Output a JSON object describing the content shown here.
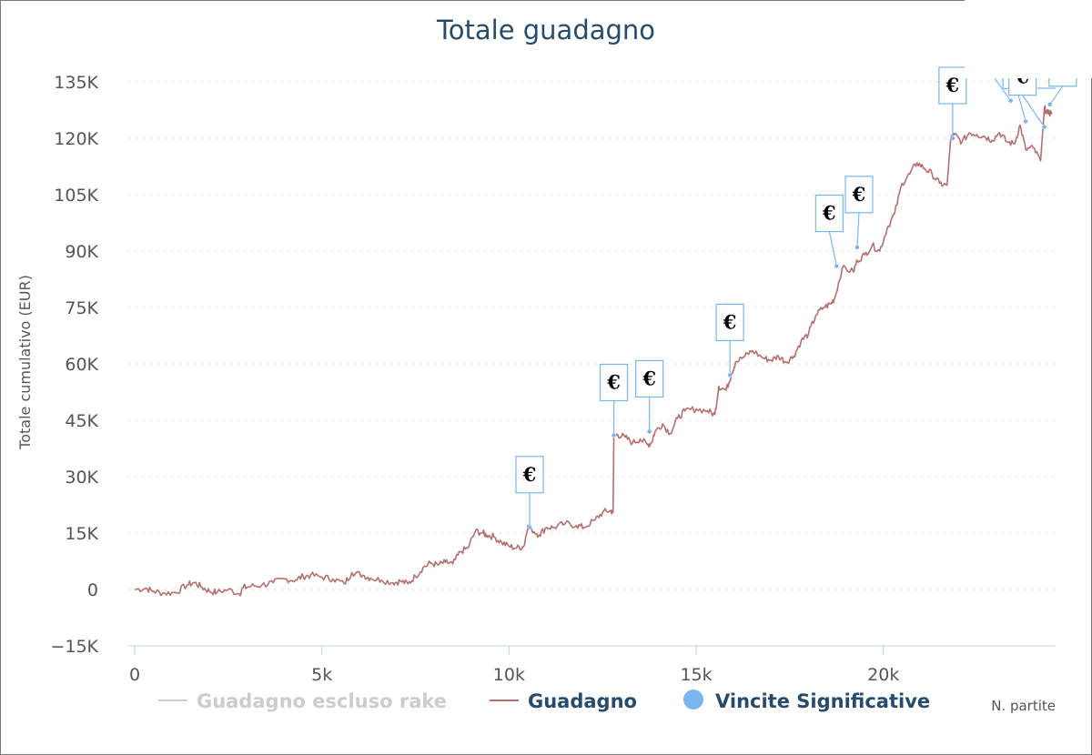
{
  "chart_data": {
    "type": "line",
    "title": "Totale guadagno",
    "xlabel": "N. partite",
    "ylabel": "Totale cumulativo (EUR)",
    "xlim": [
      0,
      24600
    ],
    "ylim": [
      -15000,
      135000
    ],
    "x_ticks": [
      0,
      5000,
      10000,
      15000,
      20000
    ],
    "x_tick_labels": [
      "0",
      "5k",
      "10k",
      "15k",
      "20k"
    ],
    "y_ticks": [
      -15000,
      0,
      15000,
      30000,
      45000,
      60000,
      75000,
      90000,
      105000,
      120000,
      135000
    ],
    "y_tick_labels": [
      "−15K",
      "0",
      "15K",
      "30K",
      "45K",
      "60K",
      "75K",
      "90K",
      "105K",
      "120K",
      "135K"
    ],
    "grid": true,
    "legend_position": "bottom",
    "colors": {
      "guadagno": "#b56f6f",
      "escluso_rake": "#cccccc",
      "vincite": "#7cb5ec",
      "title": "#274b6d"
    },
    "series": [
      {
        "name": "Guadagno escluso rake",
        "hidden": true,
        "x": [],
        "y": []
      },
      {
        "name": "Guadagno",
        "x": [
          0,
          300,
          500,
          800,
          1100,
          1400,
          1600,
          1800,
          2000,
          2200,
          2500,
          2800,
          2900,
          3100,
          3400,
          3700,
          4000,
          4300,
          4500,
          4700,
          5000,
          5300,
          5600,
          5800,
          6100,
          6300,
          6600,
          6900,
          7100,
          7300,
          7500,
          7700,
          7900,
          8100,
          8300,
          8500,
          8700,
          8900,
          9100,
          9300,
          9400,
          9600,
          9800,
          10000,
          10200,
          10400,
          10500,
          10600,
          10800,
          11000,
          11200,
          11500,
          11800,
          12000,
          12300,
          12500,
          12700,
          12780,
          12800,
          12900,
          13100,
          13300,
          13500,
          13700,
          13800,
          13900,
          14100,
          14300,
          14500,
          14700,
          15000,
          15300,
          15500,
          15600,
          15800,
          15950,
          16050,
          16300,
          16500,
          16800,
          17000,
          17200,
          17400,
          17600,
          17800,
          18000,
          18200,
          18400,
          18600,
          18700,
          18900,
          19200,
          19300,
          19500,
          19700,
          19900,
          20100,
          20300,
          20500,
          20700,
          20900,
          21100,
          21300,
          21500,
          21700,
          21800,
          21900,
          22100,
          22300,
          22500,
          22700,
          22900,
          23100,
          23300,
          23500,
          23650,
          23800,
          24000,
          24200,
          24300,
          24400,
          24500
        ],
        "y": [
          0,
          300,
          -500,
          -1000,
          -800,
          1200,
          1800,
          600,
          -500,
          -800,
          0,
          -1200,
          500,
          800,
          1200,
          1800,
          2800,
          2500,
          3500,
          3800,
          3300,
          2800,
          1500,
          4500,
          3800,
          3000,
          2500,
          1800,
          2200,
          1500,
          3500,
          5800,
          7000,
          6500,
          7200,
          6800,
          10000,
          11000,
          15500,
          15000,
          14500,
          14000,
          12500,
          11500,
          11000,
          11500,
          17000,
          16000,
          14500,
          16500,
          16500,
          17500,
          17000,
          16500,
          18500,
          20500,
          21000,
          20500,
          41000,
          41200,
          40500,
          39000,
          40000,
          38500,
          39000,
          42000,
          44000,
          41500,
          45500,
          47500,
          48000,
          47500,
          46500,
          54000,
          53000,
          57500,
          60500,
          62000,
          63500,
          61500,
          61000,
          62000,
          60500,
          62000,
          66000,
          68000,
          73000,
          75000,
          76000,
          77500,
          85500,
          84500,
          87500,
          89000,
          91500,
          90000,
          96000,
          100000,
          108000,
          110500,
          113500,
          112000,
          110500,
          108000,
          107500,
          120000,
          121000,
          119000,
          121500,
          121000,
          120500,
          119500,
          121500,
          119000,
          118500,
          123500,
          117000,
          117500,
          114000,
          128000,
          126500,
          127000
        ]
      },
      {
        "name": "Vincite Significative",
        "marker": "circle",
        "flag_text": "€",
        "x": [
          10550,
          12800,
          13750,
          15900,
          18750,
          19300,
          21850,
          23400,
          23800,
          24300,
          24450
        ],
        "y": [
          16500,
          41000,
          42000,
          57000,
          86000,
          91000,
          120000,
          130000,
          124500,
          123000,
          129000
        ]
      }
    ]
  }
}
